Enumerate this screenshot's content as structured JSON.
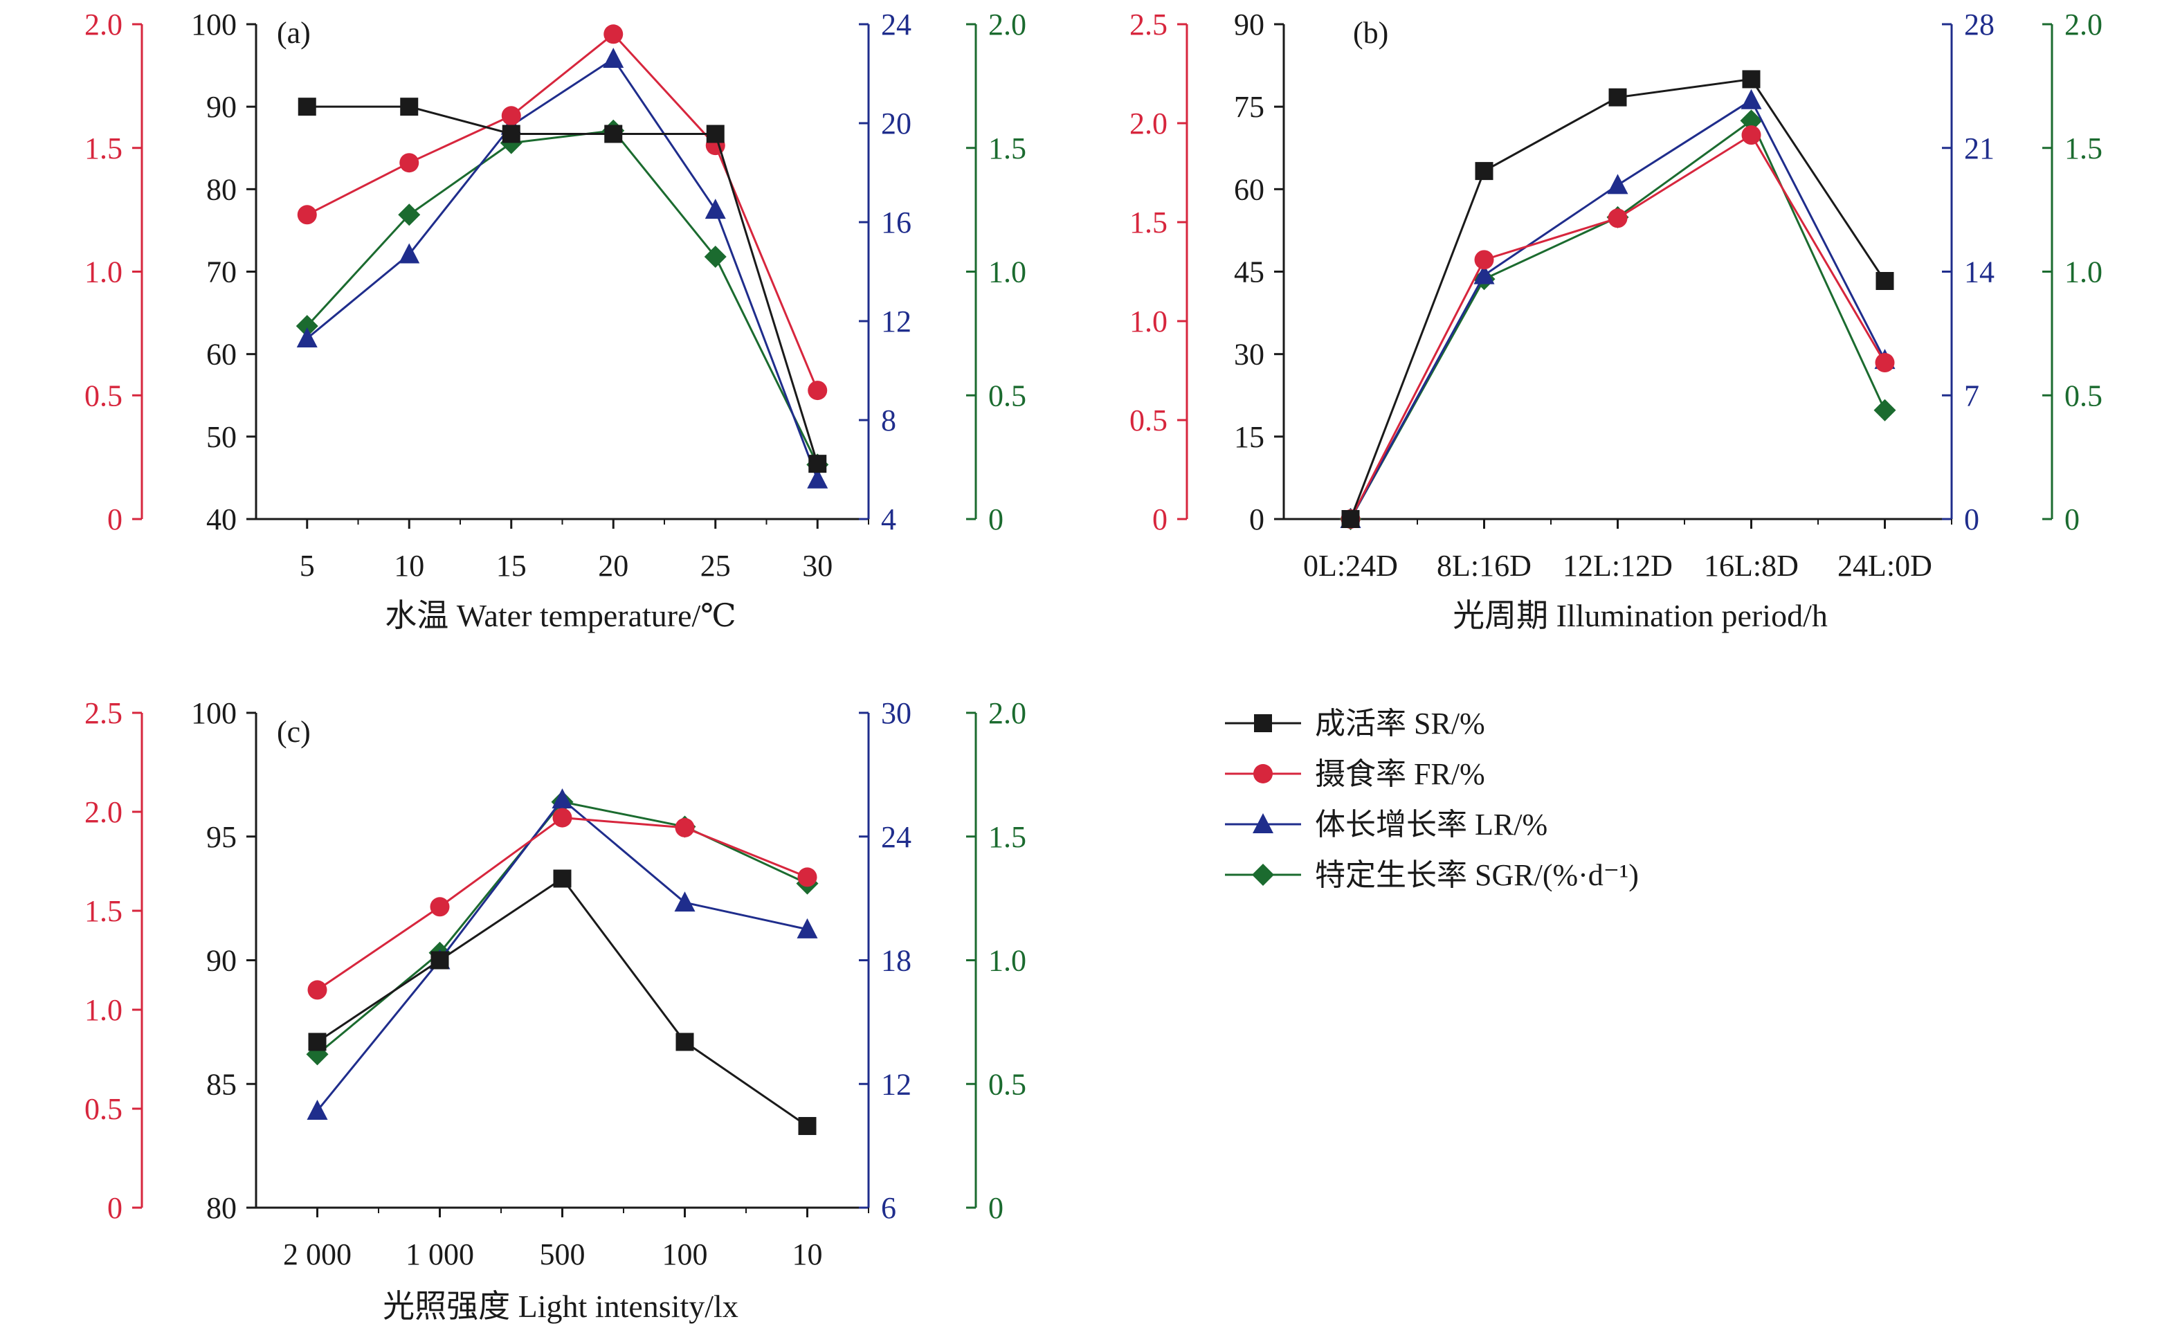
{
  "colors": {
    "sr": "#1a1a1a",
    "fr": "#d7263d",
    "lr": "#1f2d8c",
    "sgr": "#1b6b2f"
  },
  "legend": [
    {
      "key": "sr",
      "label": "成活率 SR/%",
      "marker": "square"
    },
    {
      "key": "fr",
      "label": "摄食率 FR/%",
      "marker": "circle"
    },
    {
      "key": "lr",
      "label": "体长增长率 LR/%",
      "marker": "triangle"
    },
    {
      "key": "sgr",
      "label": "特定生长率 SGR/(%·d⁻¹)",
      "marker": "diamond"
    }
  ],
  "chart_data": [
    {
      "type": "line",
      "panel_label": "(a)",
      "xlabel": "水温 Water temperature/℃",
      "categories": [
        "5",
        "10",
        "15",
        "20",
        "25",
        "30"
      ],
      "axes": {
        "sr": {
          "range": [
            40,
            100
          ],
          "ticks": [
            "40",
            "50",
            "60",
            "70",
            "80",
            "90",
            "100"
          ]
        },
        "fr": {
          "range": [
            0,
            2.0
          ],
          "ticks": [
            "0",
            "0.5",
            "1.0",
            "1.5",
            "2.0"
          ]
        },
        "lr": {
          "range": [
            4,
            24
          ],
          "ticks": [
            "4",
            "8",
            "12",
            "16",
            "20",
            "24"
          ]
        },
        "sgr": {
          "range": [
            0,
            2.0
          ],
          "ticks": [
            "0",
            "0.5",
            "1.0",
            "1.5",
            "2.0"
          ]
        }
      },
      "series": [
        {
          "key": "sr",
          "name": "成活率 SR/%",
          "values": [
            90,
            90,
            86.7,
            86.7,
            86.7,
            46.7
          ]
        },
        {
          "key": "fr",
          "name": "摄食率 FR/%",
          "values": [
            1.23,
            1.44,
            1.63,
            1.96,
            1.51,
            0.52
          ]
        },
        {
          "key": "lr",
          "name": "体长增长率 LR/%",
          "values": [
            11.3,
            14.7,
            19.9,
            22.6,
            16.5,
            5.6
          ]
        },
        {
          "key": "sgr",
          "name": "特定生长率 SGR/(%·d⁻¹)",
          "values": [
            0.78,
            1.23,
            1.52,
            1.57,
            1.06,
            0.22
          ]
        }
      ]
    },
    {
      "type": "line",
      "panel_label": "(b)",
      "xlabel": "光周期 Illumination period/h",
      "categories": [
        "0L:24D",
        "8L:16D",
        "12L:12D",
        "16L:8D",
        "24L:0D"
      ],
      "axes": {
        "sr": {
          "range": [
            0,
            90
          ],
          "ticks": [
            "0",
            "15",
            "30",
            "45",
            "60",
            "75",
            "90"
          ]
        },
        "fr": {
          "range": [
            0,
            2.5
          ],
          "ticks": [
            "0",
            "0.5",
            "1.0",
            "1.5",
            "2.0",
            "2.5"
          ]
        },
        "lr": {
          "range": [
            0,
            28
          ],
          "ticks": [
            "0",
            "7",
            "14",
            "21",
            "28"
          ]
        },
        "sgr": {
          "range": [
            0,
            2.0
          ],
          "ticks": [
            "0",
            "0.5",
            "1.0",
            "1.5",
            "2.0"
          ]
        }
      },
      "series": [
        {
          "key": "sr",
          "name": "成活率 SR/%",
          "values": [
            0,
            63.3,
            76.7,
            80,
            43.3
          ]
        },
        {
          "key": "fr",
          "name": "摄食率 FR/%",
          "values": [
            0,
            1.31,
            1.52,
            1.94,
            0.79
          ]
        },
        {
          "key": "lr",
          "name": "体长增长率 LR/%",
          "values": [
            0,
            13.8,
            18.9,
            23.7,
            9.0
          ]
        },
        {
          "key": "sgr",
          "name": "特定生长率 SGR/(%·d⁻¹)",
          "values": [
            0,
            0.97,
            1.22,
            1.61,
            0.44
          ]
        }
      ]
    },
    {
      "type": "line",
      "panel_label": "(c)",
      "xlabel": "光照强度 Light intensity/lx",
      "categories": [
        "2 000",
        "1 000",
        "500",
        "100",
        "10"
      ],
      "axes": {
        "sr": {
          "range": [
            80,
            100
          ],
          "ticks": [
            "80",
            "85",
            "90",
            "95",
            "100"
          ]
        },
        "fr": {
          "range": [
            0,
            2.5
          ],
          "ticks": [
            "0",
            "0.5",
            "1.0",
            "1.5",
            "2.0",
            "2.5"
          ]
        },
        "lr": {
          "range": [
            6,
            30
          ],
          "ticks": [
            "6",
            "12",
            "18",
            "24",
            "30"
          ]
        },
        "sgr": {
          "range": [
            0,
            2.0
          ],
          "ticks": [
            "0",
            "0.5",
            "1.0",
            "1.5",
            "2.0"
          ]
        }
      },
      "series": [
        {
          "key": "sr",
          "name": "成活率 SR/%",
          "values": [
            86.7,
            90,
            93.3,
            86.7,
            83.3
          ]
        },
        {
          "key": "fr",
          "name": "摄食率 FR/%",
          "values": [
            1.1,
            1.52,
            1.97,
            1.92,
            1.67
          ]
        },
        {
          "key": "lr",
          "name": "体长增长率 LR/%",
          "values": [
            10.7,
            18.0,
            25.8,
            20.8,
            19.5
          ]
        },
        {
          "key": "sgr",
          "name": "特定生长率 SGR/(%·d⁻¹)",
          "values": [
            0.62,
            1.03,
            1.64,
            1.54,
            1.31
          ]
        }
      ]
    }
  ]
}
